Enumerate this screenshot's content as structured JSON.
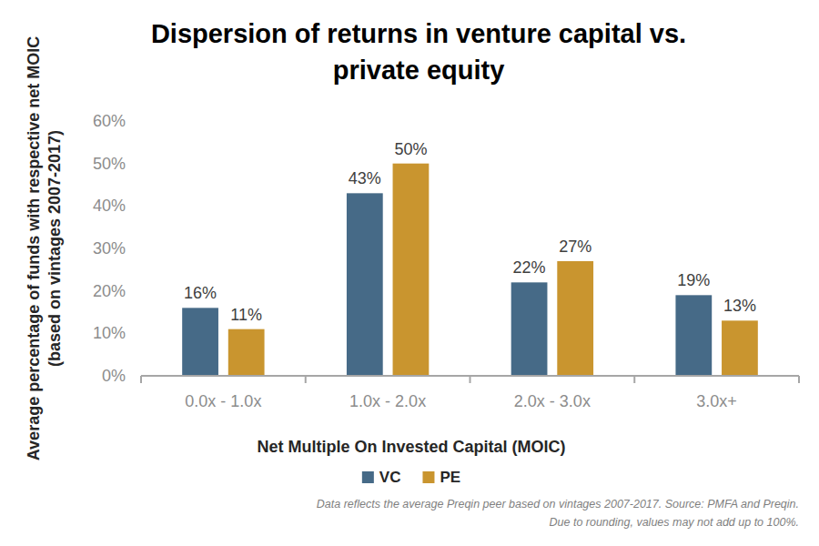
{
  "chart_data": {
    "type": "bar",
    "title": "Dispersion of returns in venture capital vs. private equity",
    "x_label": "Net Multiple On Invested Capital (MOIC)",
    "y_label": "Average percentage of funds with respective net MOIC (based on vintages 2007-2017)",
    "annotations": [
      "Data reflects the average Preqin peer based on vintages 2007-2017. Source: PMFA and Preqin.",
      "Due to rounding, values may not add up to 100%."
    ],
    "categories": [
      "0.0x - 1.0x",
      "1.0x - 2.0x",
      "2.0x - 3.0x",
      "3.0x+"
    ],
    "series": [
      {
        "name": "VC",
        "color": "#466a87",
        "values": [
          16,
          43,
          22,
          19
        ],
        "value_labels": [
          "16%",
          "43%",
          "22%",
          "19%"
        ]
      },
      {
        "name": "PE",
        "color": "#c9952f",
        "values": [
          11,
          50,
          27,
          13
        ],
        "value_labels": [
          "11%",
          "50%",
          "27%",
          "13%"
        ]
      }
    ],
    "ylim": [
      0,
      60
    ],
    "yticks": [
      {
        "value": 0,
        "label": "0%"
      },
      {
        "value": 10,
        "label": "10%"
      },
      {
        "value": 20,
        "label": "20%"
      },
      {
        "value": 30,
        "label": "30%"
      },
      {
        "value": 40,
        "label": "40%"
      },
      {
        "value": 50,
        "label": "50%"
      },
      {
        "value": 60,
        "label": "60%"
      }
    ],
    "grid": false,
    "legend": "bottom",
    "data_labels": true
  }
}
